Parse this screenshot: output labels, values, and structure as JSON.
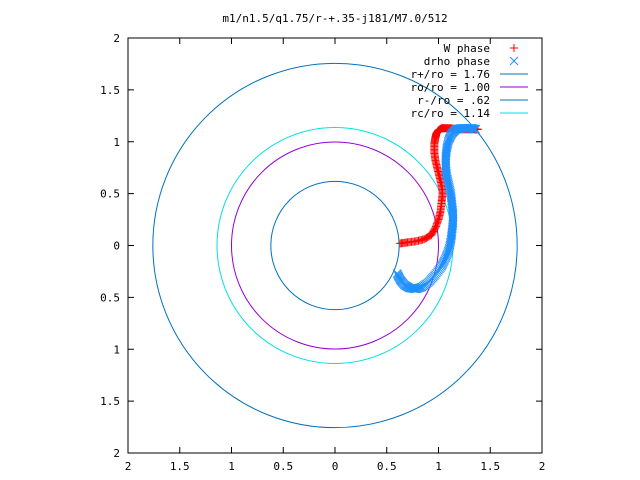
{
  "chart_data": {
    "type": "scatter",
    "title": "m1/n1.5/q1.75/r-+.35-j181/M7.0/512",
    "xlim": [
      -2,
      2
    ],
    "ylim": [
      -2,
      2
    ],
    "xtick_values": [
      -2,
      -1.5,
      -1,
      -0.5,
      0,
      0.5,
      1,
      1.5,
      2
    ],
    "xtick_labels": [
      "2",
      "1.5",
      "1",
      "0.5",
      "0",
      "0.5",
      "1",
      "1.5",
      "2"
    ],
    "ytick_values": [
      2,
      1.5,
      1,
      0.5,
      0,
      -0.5,
      -1,
      -1.5,
      -2
    ],
    "ytick_labels": [
      "2",
      "1.5",
      "1",
      "0.5",
      "0",
      "0.5",
      "1",
      "1.5",
      "2"
    ],
    "grid": false,
    "legend_position": "top-right",
    "series": [
      {
        "name": "W phase",
        "kind": "points",
        "marker": "plus",
        "color": "#ff0000",
        "x": [
          0.63,
          0.7,
          0.78,
          0.86,
          0.93,
          0.97,
          1.0,
          1.02,
          1.03,
          1.04,
          1.03,
          1.01,
          0.99,
          0.97,
          0.96,
          0.96,
          0.97,
          0.98,
          1.0,
          1.03,
          1.07,
          1.12,
          1.18,
          1.24,
          1.3,
          1.35,
          1.38
        ],
        "y": [
          0.02,
          0.03,
          0.04,
          0.06,
          0.1,
          0.17,
          0.25,
          0.33,
          0.42,
          0.5,
          0.58,
          0.66,
          0.74,
          0.82,
          0.9,
          0.98,
          1.04,
          1.08,
          1.11,
          1.13,
          1.13,
          1.13,
          1.12,
          1.12,
          1.12,
          1.12,
          1.12
        ]
      },
      {
        "name": "drho phase",
        "kind": "points",
        "marker": "cross",
        "color": "#1e90ff",
        "x": [
          0.6,
          0.63,
          0.67,
          0.72,
          0.78,
          0.84,
          0.91,
          0.97,
          1.03,
          1.07,
          1.1,
          1.12,
          1.13,
          1.14,
          1.14,
          1.13,
          1.12,
          1.1,
          1.08,
          1.07,
          1.07,
          1.08,
          1.1,
          1.13,
          1.17,
          1.22,
          1.27,
          1.32,
          1.36
        ],
        "y": [
          -0.27,
          -0.33,
          -0.38,
          -0.41,
          -0.42,
          -0.4,
          -0.35,
          -0.28,
          -0.2,
          -0.12,
          -0.04,
          0.05,
          0.13,
          0.22,
          0.31,
          0.4,
          0.49,
          0.58,
          0.67,
          0.76,
          0.85,
          0.94,
          1.02,
          1.08,
          1.12,
          1.13,
          1.13,
          1.13,
          1.12
        ]
      },
      {
        "name": "r+/ro = 1.76",
        "kind": "circle",
        "radius": 1.76,
        "color": "#0072bd"
      },
      {
        "name": "ro/ro = 1.00",
        "kind": "circle",
        "radius": 1.0,
        "color": "#9400d3"
      },
      {
        "name": "r-/ro = .62",
        "kind": "circle",
        "radius": 0.62,
        "color": "#0072bd"
      },
      {
        "name": "rc/ro = 1.14",
        "kind": "circle",
        "radius": 1.14,
        "color": "#00e0e0"
      }
    ]
  }
}
